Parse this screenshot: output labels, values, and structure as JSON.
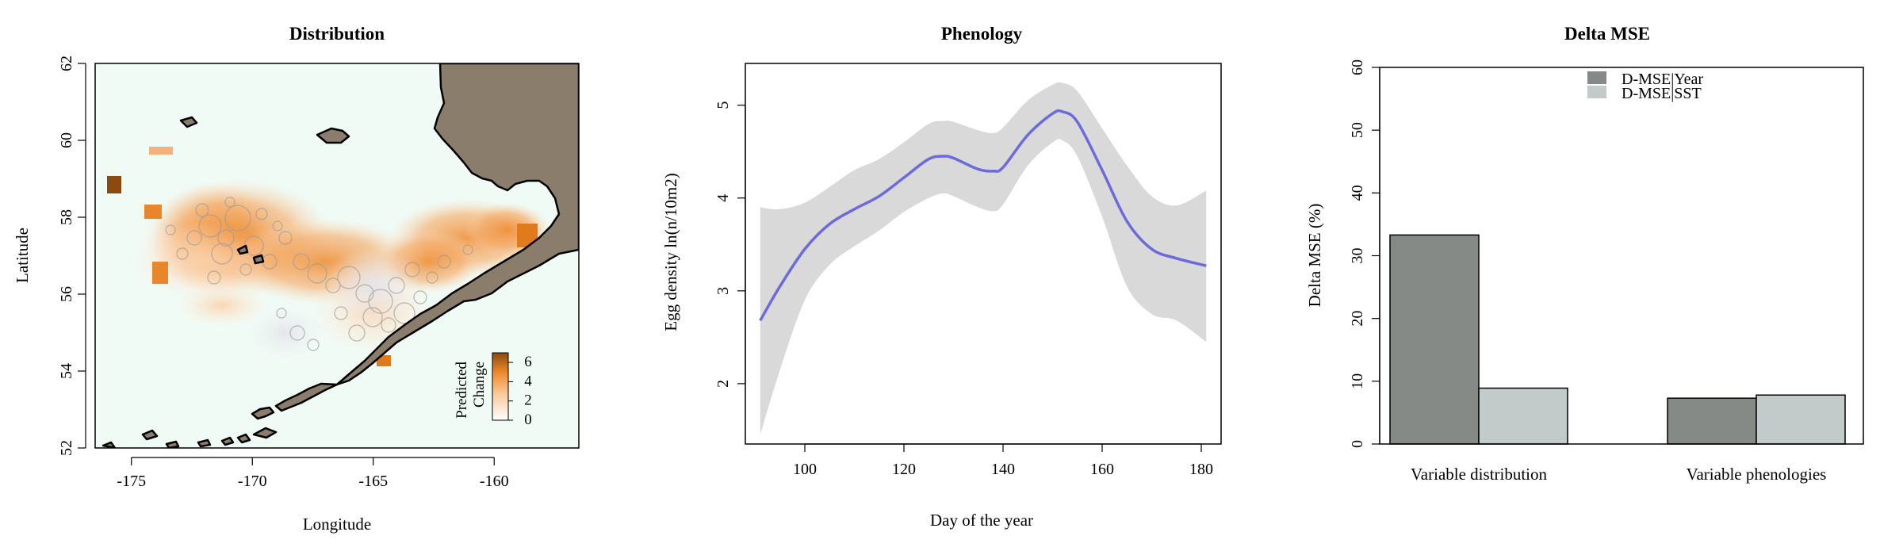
{
  "chart_data": [
    {
      "type": "heatmap",
      "title": "Distribution",
      "xlabel": "Longitude",
      "ylabel": "Latitude",
      "xlim": [
        -176.5,
        -156.5
      ],
      "ylim": [
        52,
        62
      ],
      "xticks": [
        -175,
        -170,
        -165,
        -160
      ],
      "xtick_labels": [
        "-175",
        "-170",
        "-165",
        "-160"
      ],
      "yticks": [
        52,
        54,
        56,
        58,
        60,
        62
      ],
      "ytick_labels": [
        "52",
        "54",
        "56",
        "58",
        "60",
        "62"
      ],
      "legend": {
        "title_line1": "Predicted",
        "title_line2": "Change",
        "ticks": [
          0,
          2,
          4,
          6
        ],
        "tick_labels": [
          "0",
          "2",
          "4",
          "6"
        ],
        "range": [
          0,
          7
        ],
        "placement": "bottom-right",
        "color_low": "#ffffff",
        "color_high": "#8b4a0f"
      },
      "colors": {
        "ocean": "#f0fbf6",
        "land": "#8b7d6b",
        "accent": "#ef8a2e",
        "circles": "#9a9a9a"
      }
    },
    {
      "type": "line",
      "title": "Phenology",
      "xlabel": "Day of the year",
      "ylabel": "Egg density ln(n/10m2)",
      "xlim": [
        88,
        184
      ],
      "ylim": [
        1.35,
        5.45
      ],
      "xticks": [
        100,
        120,
        140,
        160,
        180
      ],
      "xtick_labels": [
        "100",
        "120",
        "140",
        "160",
        "180"
      ],
      "yticks": [
        2,
        3,
        4,
        5
      ],
      "ytick_labels": [
        "2",
        "3",
        "4",
        "5"
      ],
      "x": [
        91,
        95,
        100,
        105,
        110,
        115,
        120,
        125,
        128,
        130,
        135,
        138,
        140,
        145,
        150,
        152,
        155,
        160,
        165,
        170,
        175,
        181
      ],
      "y": [
        2.68,
        3.05,
        3.45,
        3.72,
        3.88,
        4.02,
        4.22,
        4.42,
        4.45,
        4.43,
        4.31,
        4.29,
        4.33,
        4.68,
        4.91,
        4.93,
        4.82,
        4.3,
        3.75,
        3.45,
        3.35,
        3.27
      ],
      "ci_lower": [
        1.45,
        2.15,
        2.9,
        3.28,
        3.48,
        3.65,
        3.85,
        4.0,
        4.05,
        4.02,
        3.9,
        3.86,
        3.93,
        4.35,
        4.6,
        4.62,
        4.45,
        3.8,
        3.05,
        2.75,
        2.68,
        2.45
      ],
      "ci_upper": [
        3.9,
        3.88,
        3.95,
        4.12,
        4.3,
        4.42,
        4.6,
        4.8,
        4.83,
        4.82,
        4.73,
        4.7,
        4.76,
        5.05,
        5.22,
        5.24,
        5.15,
        4.75,
        4.35,
        4.02,
        3.92,
        4.08
      ],
      "colors": {
        "line": "#6b6bdb",
        "band": "#d9d9d9"
      }
    },
    {
      "type": "bar",
      "title": "Delta MSE",
      "xlabel": "",
      "ylabel": "Delta MSE (%)",
      "ylim": [
        0,
        60
      ],
      "yticks": [
        0,
        10,
        20,
        30,
        40,
        50,
        60
      ],
      "ytick_labels": [
        "0",
        "10",
        "20",
        "30",
        "40",
        "50",
        "60"
      ],
      "categories": [
        "Variable distribution",
        "Variable phenologies"
      ],
      "series": [
        {
          "name": "D-MSE|Year",
          "values": [
            33.3,
            7.3
          ],
          "color": "#858a87"
        },
        {
          "name": "D-MSE|SST",
          "values": [
            8.9,
            7.8
          ],
          "color": "#c2cbc9"
        }
      ],
      "legend_placement": "top-right"
    }
  ]
}
